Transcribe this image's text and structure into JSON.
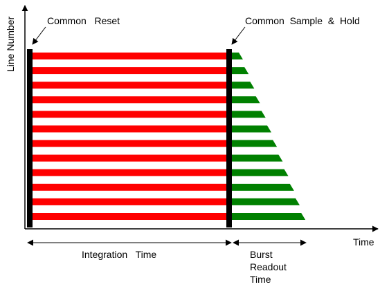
{
  "labels": {
    "y_axis": "Line Number",
    "x_axis": "Time",
    "reset": "Common   Reset",
    "sample_hold": "Common  Sample  &  Hold",
    "integration": "Integration   Time",
    "burst_line1": "Burst",
    "burst_line2": "Readout",
    "burst_line3": "Time"
  },
  "diagram": {
    "line_count": 12
  },
  "colors": {
    "integration": "#ff0000",
    "readout": "#008000",
    "bar": "#000000",
    "axis": "#000000"
  }
}
